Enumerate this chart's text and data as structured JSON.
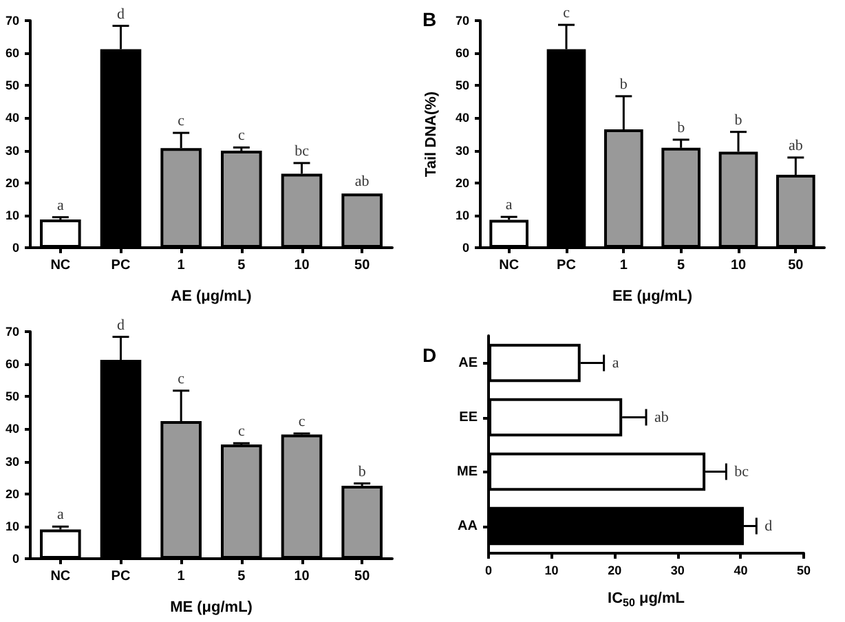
{
  "chart_data": [
    {
      "type": "bar",
      "xlabel": "AE (μg/mL)",
      "categories": [
        "NC",
        "PC",
        "1",
        "5",
        "10",
        "50"
      ],
      "values": [
        8.7,
        61.2,
        30.7,
        29.9,
        22.8,
        16.7
      ],
      "colors": [
        "#ffffff",
        "#000000",
        "#999999",
        "#999999",
        "#999999",
        "#999999"
      ],
      "errors": [
        [
          8.7,
          9.4
        ],
        [
          61.2,
          68.4
        ],
        [
          30.7,
          35.4
        ],
        [
          29.9,
          30.9
        ],
        [
          22.8,
          26.1
        ],
        null
      ],
      "ylim": [
        0,
        70
      ],
      "yticks": [
        0,
        10,
        20,
        30,
        40,
        50,
        60,
        70
      ],
      "grid": false,
      "annotations": [
        {
          "text": "a",
          "x": "NC",
          "y": 9.4
        },
        {
          "text": "d",
          "x": "PC",
          "y": 68.4
        },
        {
          "text": "c",
          "x": "1",
          "y": 35.4
        },
        {
          "text": "c",
          "x": "5",
          "y": 30.9
        },
        {
          "text": "bc",
          "x": "10",
          "y": 26.1
        },
        {
          "text": "ab",
          "x": "50",
          "y": 16.7
        }
      ]
    },
    {
      "type": "bar",
      "title": "B",
      "xlabel": "EE (μg/mL)",
      "ylabel": "Tail DNA(%)",
      "categories": [
        "NC",
        "PC",
        "1",
        "5",
        "10",
        "50"
      ],
      "values": [
        8.6,
        61.2,
        36.5,
        30.8,
        29.6,
        22.5
      ],
      "colors": [
        "#ffffff",
        "#000000",
        "#999999",
        "#999999",
        "#999999",
        "#999999"
      ],
      "errors": [
        [
          8.6,
          9.5
        ],
        [
          61.2,
          68.7
        ],
        [
          36.5,
          46.7
        ],
        [
          30.8,
          33.3
        ],
        [
          29.6,
          35.7
        ],
        [
          22.5,
          27.8
        ]
      ],
      "ylim": [
        0,
        70
      ],
      "yticks": [
        0,
        10,
        20,
        30,
        40,
        50,
        60,
        70
      ],
      "grid": false,
      "annotations": [
        {
          "text": "a",
          "x": "NC",
          "y": 9.5
        },
        {
          "text": "c",
          "x": "PC",
          "y": 68.7
        },
        {
          "text": "b",
          "x": "1",
          "y": 46.7
        },
        {
          "text": "b",
          "x": "5",
          "y": 33.3
        },
        {
          "text": "b",
          "x": "10",
          "y": 35.7
        },
        {
          "text": "ab",
          "x": "50",
          "y": 27.8
        }
      ]
    },
    {
      "type": "bar",
      "xlabel": "ME (μg/mL)",
      "categories": [
        "NC",
        "PC",
        "1",
        "5",
        "10",
        "50"
      ],
      "values": [
        9.0,
        61.3,
        42.4,
        35.2,
        38.3,
        22.5
      ],
      "colors": [
        "#ffffff",
        "#000000",
        "#999999",
        "#999999",
        "#999999",
        "#999999"
      ],
      "errors": [
        [
          9.0,
          9.9
        ],
        [
          61.3,
          68.4
        ],
        [
          42.4,
          51.8
        ],
        [
          35.2,
          35.6
        ],
        [
          38.3,
          38.6
        ],
        [
          22.5,
          23.2
        ]
      ],
      "ylim": [
        0,
        70
      ],
      "yticks": [
        0,
        10,
        20,
        30,
        40,
        50,
        60,
        70
      ],
      "grid": false,
      "annotations": [
        {
          "text": "a",
          "x": "NC",
          "y": 9.9
        },
        {
          "text": "d",
          "x": "PC",
          "y": 68.4
        },
        {
          "text": "c",
          "x": "1",
          "y": 51.8
        },
        {
          "text": "c",
          "x": "5",
          "y": 35.6
        },
        {
          "text": "c",
          "x": "10",
          "y": 38.6
        },
        {
          "text": "b",
          "x": "50",
          "y": 23.2
        }
      ]
    },
    {
      "type": "bar",
      "title": "D",
      "orientation": "horizontal",
      "xlabel": "IC$_{50}$ μg/mL",
      "categories": [
        "AE",
        "EE",
        "ME",
        "AA"
      ],
      "values": [
        14.6,
        21.2,
        34.4,
        40.5
      ],
      "colors": [
        "#ffffff",
        "#ffffff",
        "#ffffff",
        "#000000"
      ],
      "errors": [
        [
          14.6,
          18.3
        ],
        [
          21.2,
          25.0
        ],
        [
          34.4,
          37.7
        ],
        [
          40.5,
          42.5
        ]
      ],
      "xlim": [
        0,
        50
      ],
      "xticks": [
        0,
        10,
        20,
        30,
        40,
        50
      ],
      "grid": false,
      "annotations": [
        {
          "text": "a",
          "x": 18.3,
          "y": "AE"
        },
        {
          "text": "ab",
          "x": 25.0,
          "y": "EE"
        },
        {
          "text": "bc",
          "x": 37.7,
          "y": "ME"
        },
        {
          "text": "d",
          "x": 42.5,
          "y": "AA"
        }
      ]
    }
  ]
}
